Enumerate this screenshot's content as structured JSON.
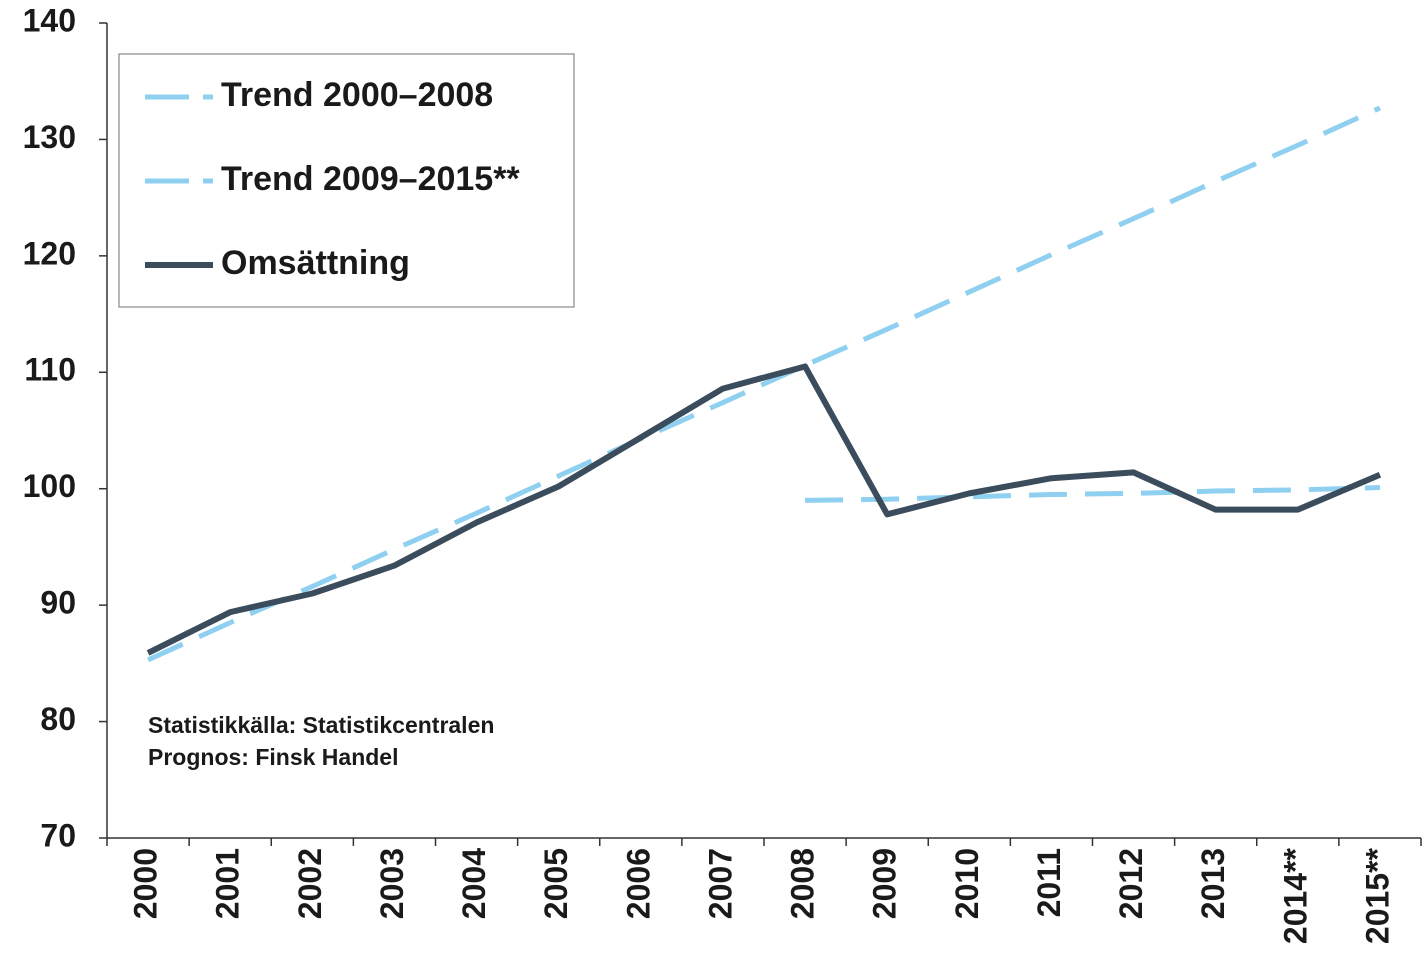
{
  "chart_data": {
    "type": "line",
    "categories": [
      "2000",
      "2001",
      "2002",
      "2003",
      "2004",
      "2005",
      "2006",
      "2007",
      "2008",
      "2009",
      "2010",
      "2011",
      "2012",
      "2013",
      "2014**",
      "2015**"
    ],
    "series": [
      {
        "name": "Trend 2000–2008",
        "color": "#8fd0f0",
        "line_style": "dashed",
        "values": [
          85.3,
          88.5,
          91.6,
          94.8,
          97.9,
          101.1,
          104.3,
          107.4,
          110.6,
          113.7,
          116.9,
          120.1,
          123.2,
          126.4,
          129.5,
          132.7
        ]
      },
      {
        "name": "Trend 2009–2015**",
        "color": "#8fd0f0",
        "line_style": "dashed",
        "values": [
          null,
          null,
          null,
          null,
          null,
          null,
          null,
          null,
          99.0,
          99.1,
          99.3,
          99.5,
          99.6,
          99.8,
          99.9,
          100.1
        ]
      },
      {
        "name": "Omsättning",
        "color": "#3b4d5c",
        "line_style": "solid",
        "values": [
          85.9,
          89.4,
          91.0,
          93.4,
          97.1,
          100.2,
          104.4,
          108.6,
          110.5,
          97.8,
          99.6,
          100.9,
          101.4,
          98.2,
          98.2,
          101.2
        ]
      }
    ],
    "ylim": [
      70,
      140
    ],
    "yticks": [
      70,
      80,
      90,
      100,
      110,
      120,
      130,
      140
    ],
    "grid": false,
    "legend": "upper left",
    "annotations": [
      "Statistikkälla: Statistikcentralen",
      "Prognos: Finsk Handel"
    ]
  }
}
